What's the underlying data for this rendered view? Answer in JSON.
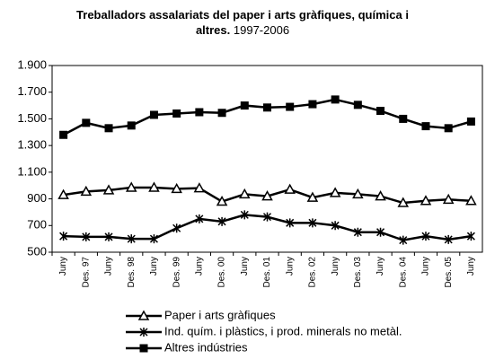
{
  "chart_data": {
    "type": "line",
    "title": "Treballadors assalariats del paper i arts gràfiques, química i altres.",
    "subtitle": "1997-2006",
    "categories": [
      "Juny",
      "Des. 97",
      "Juny",
      "Des. 98",
      "Juny",
      "Des. 99",
      "Juny",
      "Des. 00",
      "Juny",
      "Des. 01",
      "Juny",
      "Des. 02",
      "Juny",
      "Des. 03",
      "Juny",
      "Des. 04",
      "Juny",
      "Des. 05",
      "Juny"
    ],
    "series": [
      {
        "name": "Paper i arts gràfiques",
        "color": "#000000",
        "marker": "triangle",
        "values": [
          930,
          955,
          965,
          985,
          985,
          975,
          980,
          880,
          935,
          920,
          970,
          910,
          945,
          935,
          920,
          870,
          885,
          895,
          885
        ]
      },
      {
        "name": "Ind. quím. i plàstics, i prod. minerals no metàl.",
        "color": "#000000",
        "marker": "asterisk",
        "values": [
          620,
          615,
          615,
          600,
          600,
          680,
          750,
          730,
          780,
          765,
          720,
          720,
          700,
          650,
          650,
          590,
          620,
          595,
          620
        ]
      },
      {
        "name": "Altres indústries",
        "color": "#000000",
        "marker": "square",
        "values": [
          1380,
          1470,
          1430,
          1450,
          1530,
          1540,
          1550,
          1545,
          1600,
          1585,
          1590,
          1610,
          1645,
          1605,
          1560,
          1500,
          1445,
          1430,
          1480
        ]
      }
    ],
    "ylim": [
      500,
      1900
    ],
    "yticks": [
      500,
      700,
      900,
      {
        "value": 1100,
        "label": "1.100"
      },
      {
        "value": 1300,
        "label": "1.300"
      },
      {
        "value": 1500,
        "label": "1.500"
      },
      {
        "value": 1700,
        "label": "1.700"
      },
      {
        "value": 1900,
        "label": "1.900"
      }
    ],
    "grid": false,
    "legend": "bottom"
  }
}
